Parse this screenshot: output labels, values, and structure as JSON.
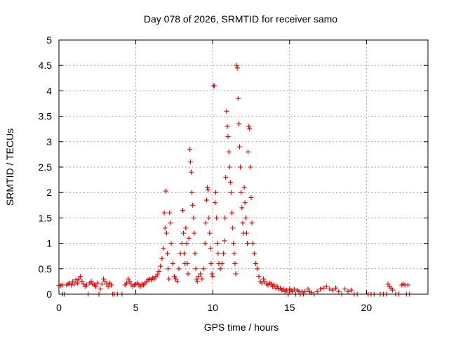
{
  "chart_data": {
    "type": "scatter",
    "title": "Day 078 of 2026, SRMTID for receiver samo",
    "xlabel": "GPS time / hours",
    "ylabel": "SRMTID / TECUs",
    "xlim": [
      0,
      24
    ],
    "ylim": [
      0,
      5
    ],
    "xticks": [
      0,
      5,
      10,
      15,
      20
    ],
    "xtick_labels": [
      "0",
      "5",
      "10",
      "15",
      "20"
    ],
    "yticks": [
      0,
      0.5,
      1,
      1.5,
      2,
      2.5,
      3,
      3.5,
      4,
      4.5,
      5
    ],
    "ytick_labels": [
      "0",
      "0.5",
      "1",
      "1.5",
      "2",
      "2.5",
      "3",
      "3.5",
      "4",
      "4.5",
      "5"
    ],
    "grid": true,
    "marker": "+",
    "marker_color": "#e00000",
    "series": [
      {
        "name": "SRMTID",
        "points": [
          [
            0.0,
            0.17
          ],
          [
            0.1,
            0.17
          ],
          [
            0.2,
            0.18
          ],
          [
            0.25,
            0.0
          ],
          [
            0.35,
            0.0
          ],
          [
            0.5,
            0.18
          ],
          [
            0.6,
            0.2
          ],
          [
            0.7,
            0.22
          ],
          [
            0.8,
            0.18
          ],
          [
            0.9,
            0.25
          ],
          [
            1.0,
            0.2
          ],
          [
            1.1,
            0.28
          ],
          [
            1.2,
            0.22
          ],
          [
            1.3,
            0.3
          ],
          [
            1.4,
            0.35
          ],
          [
            1.5,
            0.25
          ],
          [
            1.6,
            0.2
          ],
          [
            1.7,
            0.15
          ],
          [
            1.8,
            0.18
          ],
          [
            1.9,
            0.0
          ],
          [
            2.0,
            0.22
          ],
          [
            2.1,
            0.25
          ],
          [
            2.2,
            0.2
          ],
          [
            2.3,
            0.18
          ],
          [
            2.4,
            0.15
          ],
          [
            2.5,
            0.22
          ],
          [
            2.6,
            0.0
          ],
          [
            2.7,
            0.1
          ],
          [
            2.8,
            0.2
          ],
          [
            2.9,
            0.3
          ],
          [
            3.0,
            0.25
          ],
          [
            3.1,
            0.2
          ],
          [
            3.2,
            0.15
          ],
          [
            3.3,
            0.22
          ],
          [
            3.4,
            0.18
          ],
          [
            3.5,
            0.0
          ],
          [
            3.6,
            0.0
          ],
          [
            3.8,
            0.0
          ],
          [
            4.1,
            0.0
          ],
          [
            4.3,
            0.18
          ],
          [
            4.4,
            0.22
          ],
          [
            4.5,
            0.3
          ],
          [
            4.6,
            0.25
          ],
          [
            4.7,
            0.2
          ],
          [
            4.8,
            0.15
          ],
          [
            4.9,
            0.18
          ],
          [
            5.0,
            0.2
          ],
          [
            5.1,
            0.22
          ],
          [
            5.2,
            0.18
          ],
          [
            5.3,
            0.15
          ],
          [
            5.4,
            0.2
          ],
          [
            5.5,
            0.18
          ],
          [
            5.6,
            0.22
          ],
          [
            5.7,
            0.25
          ],
          [
            5.8,
            0.28
          ],
          [
            5.9,
            0.3
          ],
          [
            6.0,
            0.28
          ],
          [
            6.1,
            0.32
          ],
          [
            6.2,
            0.3
          ],
          [
            6.3,
            0.35
          ],
          [
            6.4,
            0.38
          ],
          [
            6.5,
            0.45
          ],
          [
            6.6,
            0.55
          ],
          [
            6.7,
            0.7
          ],
          [
            6.8,
            0.9
          ],
          [
            6.85,
            1.6
          ],
          [
            6.9,
            1.3
          ],
          [
            6.95,
            2.03
          ],
          [
            7.0,
            1.2
          ],
          [
            7.05,
            0.8
          ],
          [
            7.1,
            0.5
          ],
          [
            7.15,
            0.3
          ],
          [
            7.2,
            1.6
          ],
          [
            7.25,
            1.4
          ],
          [
            7.3,
            1.0
          ],
          [
            7.4,
            0.6
          ],
          [
            7.5,
            0.35
          ],
          [
            7.6,
            0.3
          ],
          [
            7.7,
            0.25
          ],
          [
            7.8,
            0.5
          ],
          [
            7.9,
            0.8
          ],
          [
            8.0,
            1.0
          ],
          [
            8.05,
            1.65
          ],
          [
            8.1,
            1.2
          ],
          [
            8.15,
            0.8
          ],
          [
            8.2,
            0.6
          ],
          [
            8.25,
            1.3
          ],
          [
            8.3,
            1.0
          ],
          [
            8.35,
            0.6
          ],
          [
            8.4,
            0.4
          ],
          [
            8.45,
            1.1
          ],
          [
            8.5,
            2.85
          ],
          [
            8.55,
            2.6
          ],
          [
            8.6,
            2.4
          ],
          [
            8.65,
            2.0
          ],
          [
            8.7,
            1.75
          ],
          [
            8.75,
            1.5
          ],
          [
            8.8,
            1.2
          ],
          [
            8.85,
            0.8
          ],
          [
            8.9,
            0.5
          ],
          [
            8.95,
            0.3
          ],
          [
            9.0,
            0.25
          ],
          [
            9.1,
            0.35
          ],
          [
            9.2,
            0.4
          ],
          [
            9.3,
            0.3
          ],
          [
            9.4,
            0.5
          ],
          [
            9.5,
            1.0
          ],
          [
            9.55,
            1.4
          ],
          [
            9.6,
            1.85
          ],
          [
            9.65,
            2.1
          ],
          [
            9.7,
            2.05
          ],
          [
            9.75,
            1.5
          ],
          [
            9.8,
            1.2
          ],
          [
            9.85,
            0.9
          ],
          [
            9.9,
            0.6
          ],
          [
            9.95,
            0.4
          ],
          [
            10.0,
            0.35
          ],
          [
            10.05,
            4.1
          ],
          [
            10.1,
            4.1
          ],
          [
            10.15,
            1.8
          ],
          [
            10.2,
            2.0
          ],
          [
            10.25,
            1.5
          ],
          [
            10.3,
            1.0
          ],
          [
            10.35,
            0.8
          ],
          [
            10.4,
            0.6
          ],
          [
            10.5,
            0.5
          ],
          [
            10.6,
            0.6
          ],
          [
            10.7,
            0.8
          ],
          [
            10.75,
            1.05
          ],
          [
            10.8,
            1.5
          ],
          [
            10.85,
            2.3
          ],
          [
            10.9,
            3.6
          ],
          [
            10.95,
            3.3
          ],
          [
            11.0,
            3.1
          ],
          [
            11.05,
            2.8
          ],
          [
            11.1,
            2.5
          ],
          [
            11.15,
            2.2
          ],
          [
            11.2,
            2.0
          ],
          [
            11.25,
            1.6
          ],
          [
            11.3,
            1.3
          ],
          [
            11.35,
            1.0
          ],
          [
            11.4,
            0.8
          ],
          [
            11.45,
            0.6
          ],
          [
            11.5,
            0.4
          ],
          [
            11.55,
            4.5
          ],
          [
            11.6,
            4.45
          ],
          [
            11.65,
            3.85
          ],
          [
            11.7,
            3.35
          ],
          [
            11.75,
            2.9
          ],
          [
            11.8,
            2.5
          ],
          [
            11.85,
            2.0
          ],
          [
            11.9,
            1.7
          ],
          [
            11.95,
            1.4
          ],
          [
            12.0,
            1.2
          ],
          [
            12.05,
            2.1
          ],
          [
            12.1,
            1.8
          ],
          [
            12.15,
            1.5
          ],
          [
            12.2,
            1.2
          ],
          [
            12.25,
            1.0
          ],
          [
            12.3,
            2.8
          ],
          [
            12.35,
            3.3
          ],
          [
            12.4,
            3.25
          ],
          [
            12.45,
            2.5
          ],
          [
            12.5,
            1.9
          ],
          [
            12.55,
            1.4
          ],
          [
            12.6,
            1.0
          ],
          [
            12.7,
            0.8
          ],
          [
            12.8,
            0.6
          ],
          [
            12.9,
            0.5
          ],
          [
            13.0,
            0.35
          ],
          [
            13.1,
            0.25
          ],
          [
            13.2,
            0.22
          ],
          [
            13.3,
            0.3
          ],
          [
            13.4,
            0.25
          ],
          [
            13.5,
            0.2
          ],
          [
            13.6,
            0.18
          ],
          [
            13.7,
            0.22
          ],
          [
            13.8,
            0.2
          ],
          [
            13.9,
            0.15
          ],
          [
            14.0,
            0.18
          ],
          [
            14.1,
            0.12
          ],
          [
            14.2,
            0.15
          ],
          [
            14.3,
            0.1
          ],
          [
            14.4,
            0.12
          ],
          [
            14.5,
            0.08
          ],
          [
            14.6,
            0.1
          ],
          [
            14.7,
            0.05
          ],
          [
            14.8,
            0.08
          ],
          [
            14.9,
            0.0
          ],
          [
            15.0,
            0.1
          ],
          [
            15.1,
            0.08
          ],
          [
            15.2,
            0.05
          ],
          [
            15.3,
            0.1
          ],
          [
            15.4,
            0.0
          ],
          [
            15.5,
            0.08
          ],
          [
            15.6,
            0.05
          ],
          [
            15.7,
            0.0
          ],
          [
            15.8,
            0.05
          ],
          [
            15.9,
            0.0
          ],
          [
            16.0,
            0.05
          ],
          [
            16.2,
            0.1
          ],
          [
            16.3,
            0.05
          ],
          [
            16.4,
            0.03
          ],
          [
            16.6,
            0.0
          ],
          [
            16.8,
            0.05
          ],
          [
            17.0,
            0.1
          ],
          [
            17.2,
            0.12
          ],
          [
            17.4,
            0.15
          ],
          [
            17.6,
            0.1
          ],
          [
            17.8,
            0.08
          ],
          [
            18.0,
            0.12
          ],
          [
            18.2,
            0.05
          ],
          [
            18.4,
            0.0
          ],
          [
            18.6,
            0.1
          ],
          [
            18.8,
            0.05
          ],
          [
            19.0,
            0.08
          ],
          [
            19.2,
            0.0
          ],
          [
            19.4,
            0.0
          ],
          [
            20.1,
            0.0
          ],
          [
            20.3,
            0.0
          ],
          [
            20.5,
            0.0
          ],
          [
            20.9,
            0.0
          ],
          [
            21.1,
            0.0
          ],
          [
            21.3,
            0.0
          ],
          [
            21.4,
            0.2
          ],
          [
            21.5,
            0.15
          ],
          [
            21.6,
            0.12
          ],
          [
            21.7,
            0.08
          ],
          [
            21.9,
            0.0
          ],
          [
            22.1,
            0.0
          ],
          [
            22.3,
            0.18
          ],
          [
            22.4,
            0.2
          ],
          [
            22.5,
            0.18
          ],
          [
            22.6,
            0.0
          ],
          [
            22.7,
            0.18
          ],
          [
            22.8,
            0.0
          ]
        ]
      }
    ]
  }
}
